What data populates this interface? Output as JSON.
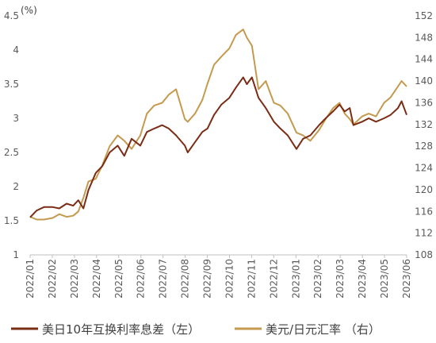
{
  "chart_data": {
    "type": "line",
    "left_axis_unit": "(%)",
    "left_ylim": [
      1,
      4.5
    ],
    "left_ticks": [
      "1",
      "1.5",
      "2",
      "2.5",
      "3",
      "3.5",
      "4",
      "4.5"
    ],
    "right_ylim": [
      108,
      152
    ],
    "right_ticks": [
      "108",
      "112",
      "116",
      "120",
      "124",
      "128",
      "132",
      "136",
      "140",
      "144",
      "148",
      "152"
    ],
    "x_ticks": [
      "2022/01",
      "2022/02",
      "2022/03",
      "2022/04",
      "2022/05",
      "2022/06",
      "2022/07",
      "2022/08",
      "2022/09",
      "2022/10",
      "2022/11",
      "2022/12",
      "2023/01",
      "2023/02",
      "2023/03",
      "2023/04",
      "2023/05",
      "2023/06"
    ],
    "series": [
      {
        "name": "美日10年互换利率息差（左）",
        "axis": "left",
        "color": "#7B2C14",
        "x": [
          "2022-01-01",
          "2022-01-10",
          "2022-01-20",
          "2022-02-01",
          "2022-02-10",
          "2022-02-20",
          "2022-03-01",
          "2022-03-08",
          "2022-03-15",
          "2022-03-22",
          "2022-04-01",
          "2022-04-10",
          "2022-04-20",
          "2022-05-01",
          "2022-05-10",
          "2022-05-20",
          "2022-06-01",
          "2022-06-10",
          "2022-06-20",
          "2022-07-01",
          "2022-07-10",
          "2022-07-20",
          "2022-08-01",
          "2022-08-05",
          "2022-08-15",
          "2022-08-25",
          "2022-09-01",
          "2022-09-10",
          "2022-09-20",
          "2022-10-01",
          "2022-10-10",
          "2022-10-20",
          "2022-10-25",
          "2022-11-01",
          "2022-11-10",
          "2022-11-20",
          "2022-12-01",
          "2022-12-10",
          "2022-12-20",
          "2023-01-01",
          "2023-01-10",
          "2023-01-20",
          "2023-02-01",
          "2023-02-10",
          "2023-02-20",
          "2023-03-01",
          "2023-03-08",
          "2023-03-15",
          "2023-03-20",
          "2023-04-01",
          "2023-04-10",
          "2023-04-20",
          "2023-05-01",
          "2023-05-10",
          "2023-05-20",
          "2023-05-25",
          "2023-06-01"
        ],
        "values": [
          1.55,
          1.65,
          1.7,
          1.7,
          1.68,
          1.75,
          1.72,
          1.8,
          1.68,
          1.95,
          2.2,
          2.3,
          2.5,
          2.6,
          2.45,
          2.7,
          2.6,
          2.8,
          2.85,
          2.9,
          2.85,
          2.75,
          2.6,
          2.5,
          2.65,
          2.8,
          2.85,
          3.05,
          3.2,
          3.3,
          3.45,
          3.6,
          3.5,
          3.6,
          3.3,
          3.15,
          2.95,
          2.85,
          2.75,
          2.55,
          2.7,
          2.75,
          2.9,
          3.0,
          3.1,
          3.2,
          3.1,
          3.15,
          2.9,
          2.95,
          3.0,
          2.95,
          3.0,
          3.05,
          3.15,
          3.25,
          3.05
        ]
      },
      {
        "name": "美元/日元汇率 （右）",
        "axis": "right",
        "color": "#C59A4E",
        "x": [
          "2022-01-01",
          "2022-01-10",
          "2022-01-20",
          "2022-02-01",
          "2022-02-10",
          "2022-02-20",
          "2022-03-01",
          "2022-03-08",
          "2022-03-15",
          "2022-03-22",
          "2022-04-01",
          "2022-04-10",
          "2022-04-20",
          "2022-05-01",
          "2022-05-10",
          "2022-05-20",
          "2022-06-01",
          "2022-06-10",
          "2022-06-20",
          "2022-07-01",
          "2022-07-10",
          "2022-07-20",
          "2022-08-01",
          "2022-08-05",
          "2022-08-15",
          "2022-08-25",
          "2022-09-01",
          "2022-09-10",
          "2022-09-20",
          "2022-10-01",
          "2022-10-10",
          "2022-10-20",
          "2022-10-25",
          "2022-11-01",
          "2022-11-10",
          "2022-11-20",
          "2022-12-01",
          "2022-12-10",
          "2022-12-20",
          "2023-01-01",
          "2023-01-10",
          "2023-01-20",
          "2023-02-01",
          "2023-02-10",
          "2023-02-20",
          "2023-03-01",
          "2023-03-08",
          "2023-03-15",
          "2023-03-20",
          "2023-04-01",
          "2023-04-10",
          "2023-04-20",
          "2023-05-01",
          "2023-05-10",
          "2023-05-20",
          "2023-05-25",
          "2023-06-01"
        ],
        "values": [
          115,
          114.5,
          114.5,
          114.8,
          115.5,
          115,
          115.2,
          116,
          118.5,
          121.5,
          122,
          124.5,
          128,
          130,
          129,
          127.5,
          130,
          134,
          135.5,
          136,
          137.5,
          138.5,
          133,
          132.5,
          134,
          136.5,
          139.5,
          143,
          144.5,
          146,
          148.5,
          149.5,
          148,
          146.5,
          138.5,
          140,
          136,
          135.5,
          134,
          130.5,
          130,
          129,
          131,
          133,
          135,
          136,
          134,
          133,
          132,
          133.5,
          134,
          133.5,
          136,
          137,
          139,
          140,
          139
        ]
      }
    ]
  }
}
